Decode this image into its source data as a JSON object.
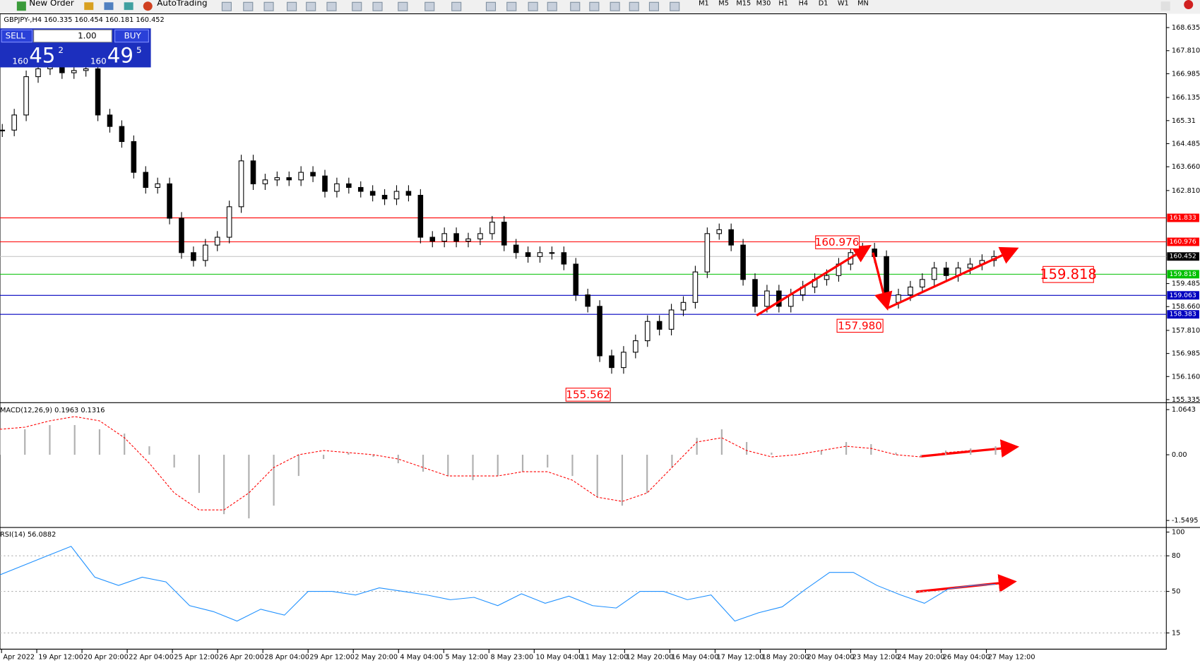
{
  "toolbar": {
    "new_order": "New Order",
    "auto_trading": "AutoTrading",
    "timeframes": [
      "M1",
      "M5",
      "M15",
      "M30",
      "H1",
      "H4",
      "D1",
      "W1",
      "MN"
    ]
  },
  "chart": {
    "symbol_info": "GBPJPY-,H4  160.335 160.454 160.181 160.452",
    "one_click": {
      "sell": "SELL",
      "buy": "BUY",
      "lot": "1.00",
      "sell_big": "160",
      "sell_mid": "45",
      "sell_sup": "2",
      "buy_big": "160",
      "buy_mid": "49",
      "buy_sup": "5"
    },
    "price_ticks": [
      168.635,
      {
        "value": 167.81,
        "label": "167.810"
      },
      166.985,
      166.135,
      165.31,
      164.485,
      {
        "value": 163.66,
        "label": "163.660"
      },
      {
        "value": 162.81,
        "label": "162.810"
      },
      159.485,
      {
        "value": 158.66,
        "label": "158.660"
      },
      {
        "value": 157.81,
        "label": "157.810"
      },
      156.985,
      {
        "value": 156.16,
        "label": "156.160"
      },
      155.335
    ],
    "levels": [
      {
        "value": 161.833,
        "color": "#ff0000"
      },
      {
        "value": 160.976,
        "color": "#ff0000"
      },
      {
        "value": 160.452,
        "color": "#000000"
      },
      {
        "value": 159.818,
        "color": "#00c000"
      },
      {
        "value": 159.063,
        "color": "#0000c0"
      },
      {
        "value": 158.383,
        "color": "#0000c0"
      }
    ],
    "annotations": [
      "160.976",
      "157.980",
      "155.562",
      "159.818"
    ],
    "closes": [
      164.97,
      165.51,
      166.88,
      167.16,
      167.29,
      167.02,
      167.1,
      167.16,
      165.51,
      165.1,
      164.56,
      163.46,
      162.92,
      163.05,
      161.82,
      160.59,
      160.31,
      160.86,
      161.14,
      162.23,
      163.87,
      163.05,
      163.19,
      163.27,
      163.19,
      163.46,
      163.33,
      162.78,
      163.05,
      162.92,
      162.78,
      162.64,
      162.51,
      162.78,
      162.64,
      161.14,
      161.0,
      161.27,
      161.0,
      161.08,
      161.27,
      161.68,
      160.86,
      160.59,
      160.45,
      160.59,
      160.59,
      160.18,
      159.08,
      158.67,
      156.9,
      156.48,
      157.03,
      157.44,
      158.13,
      157.85,
      158.54,
      158.81,
      159.9,
      161.27,
      161.41,
      160.86,
      159.63,
      158.67,
      159.22,
      158.67,
      159.08,
      159.36,
      159.63,
      159.77,
      160.18,
      160.59,
      160.72,
      160.45,
      158.81,
      159.08,
      159.36,
      159.63,
      160.04,
      159.77,
      160.04,
      160.18,
      160.31,
      160.45
    ]
  },
  "macd": {
    "label": "MACD(12,26,9) 0.1963 0.1316",
    "ticks": [
      1.0643,
      {
        "value": 0,
        "label": "0.00"
      },
      -1.5495
    ],
    "histogram": [
      0.6,
      0.6,
      0.7,
      0.7,
      0.6,
      0.5,
      0.2,
      -0.3,
      -0.9,
      -1.4,
      -1.5,
      -1.2,
      -0.5,
      -0.1,
      0.05,
      -0.05,
      -0.2,
      -0.4,
      -0.5,
      -0.6,
      -0.5,
      -0.4,
      -0.3,
      -0.5,
      -1.0,
      -1.2,
      -0.9,
      -0.3,
      0.4,
      0.6,
      0.3,
      0.05,
      0.0,
      0.1,
      0.3,
      0.25,
      0.05,
      -0.05,
      0.1,
      0.15,
      0.2
    ],
    "signal": [
      0.6,
      0.65,
      0.8,
      0.9,
      0.8,
      0.4,
      -0.2,
      -0.9,
      -1.3,
      -1.3,
      -0.9,
      -0.3,
      0.0,
      0.1,
      0.05,
      0.0,
      -0.1,
      -0.3,
      -0.5,
      -0.5,
      -0.5,
      -0.4,
      -0.4,
      -0.6,
      -1.0,
      -1.1,
      -0.9,
      -0.3,
      0.3,
      0.4,
      0.1,
      -0.05,
      0.0,
      0.1,
      0.2,
      0.15,
      0.0,
      -0.05,
      0.05,
      0.1,
      0.13
    ]
  },
  "rsi": {
    "label": "RSI(14) 56.0882",
    "ticks": [
      100,
      80,
      50,
      15
    ],
    "values": [
      64,
      72,
      80,
      88,
      62,
      55,
      62,
      58,
      38,
      33,
      25,
      35,
      30,
      50,
      50,
      47,
      53,
      50,
      47,
      43,
      45,
      38,
      48,
      40,
      46,
      38,
      36,
      50,
      50,
      43,
      47,
      25,
      32,
      37,
      52,
      66,
      66,
      55,
      47,
      40,
      52,
      55,
      56
    ]
  },
  "time_axis": [
    "Apr 2022",
    "19 Apr 12:00",
    "20 Apr 20:00",
    "22 Apr 04:00",
    "25 Apr 12:00",
    "26 Apr 20:00",
    "28 Apr 04:00",
    "29 Apr 12:00",
    "2 May 20:00",
    "4 May 04:00",
    "5 May 12:00",
    "8 May 23:00",
    "10 May 04:00",
    "11 May 12:00",
    "12 May 20:00",
    "16 May 04:00",
    "17 May 12:00",
    "18 May 20:00",
    "20 May 04:00",
    "23 May 12:00",
    "24 May 20:00",
    "26 May 04:00",
    "27 May 12:00"
  ]
}
